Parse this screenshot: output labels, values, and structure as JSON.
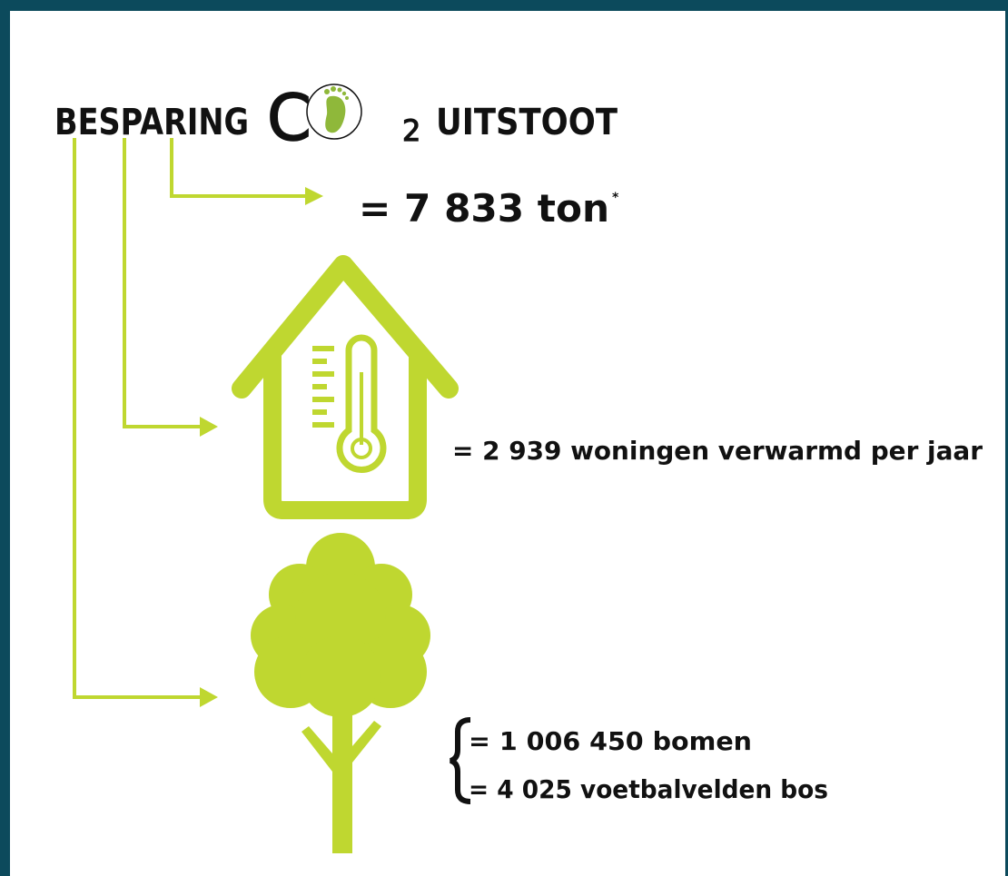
{
  "header": {
    "left": "BESPARING",
    "co2": {
      "c": "C",
      "sub": "2"
    },
    "right": "UITSTOOT"
  },
  "total": {
    "text": "= 7 833 ton",
    "note": "*"
  },
  "homes": {
    "text": "= 2 939  woningen verwarmd per jaar"
  },
  "trees": {
    "lines": [
      "= 1 006 450 bomen",
      "=  4 025 voetbalvelden bos"
    ]
  }
}
